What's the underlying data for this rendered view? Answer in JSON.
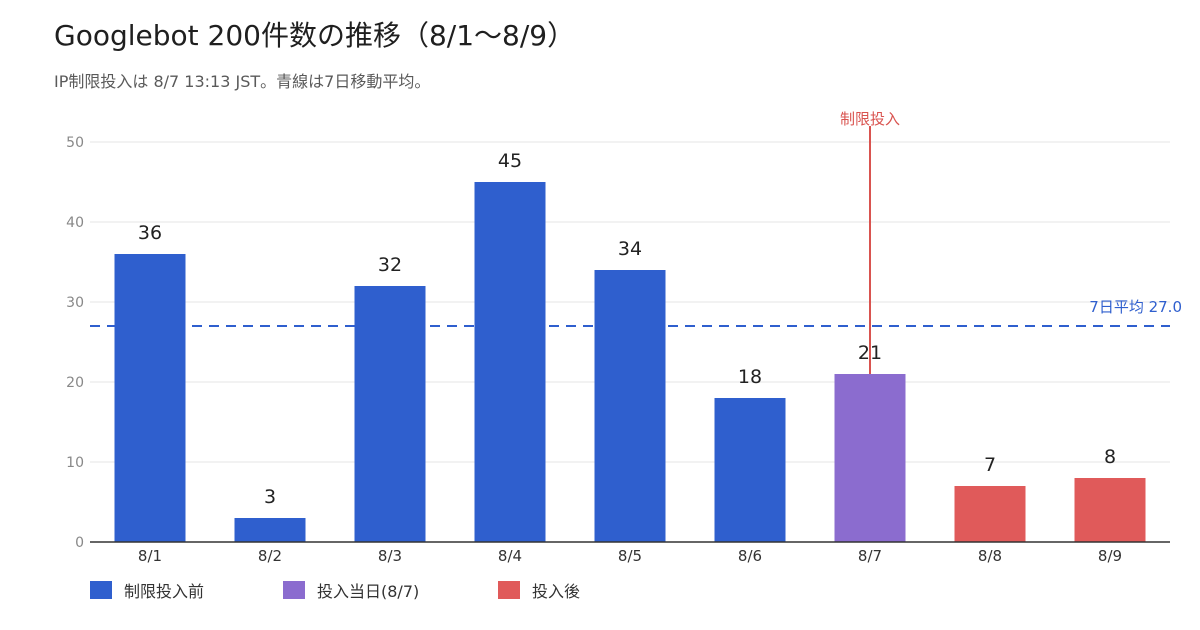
{
  "title": "Googlebot 200件数の推移（8/1〜8/9）",
  "subtitle": "IP制限投入は 8/7 13:13 JST。青線は7日移動平均。",
  "colors": {
    "before": "#2f5fce",
    "day_of": "#8b6ccf",
    "after": "#e05a5a",
    "marker": "#d9534f",
    "average": "#2f5fce",
    "grid": "#e6e6e6",
    "axis": "#333333",
    "tick": "#888888"
  },
  "chart_data": {
    "type": "bar",
    "categories": [
      "8/1",
      "8/2",
      "8/3",
      "8/4",
      "8/5",
      "8/6",
      "8/7",
      "8/8",
      "8/9"
    ],
    "values": [
      36,
      3,
      32,
      45,
      34,
      18,
      21,
      7,
      8
    ],
    "groups": [
      "before",
      "before",
      "before",
      "before",
      "before",
      "before",
      "day_of",
      "after",
      "after"
    ],
    "ylim": [
      0,
      50
    ],
    "yticks": [
      0,
      10,
      20,
      30,
      40,
      50
    ],
    "grid": true,
    "reference_line": {
      "value": 27.0,
      "label": "7日平均 27.0",
      "style": "dashed"
    },
    "event_marker": {
      "category": "8/7",
      "label": "制限投入"
    }
  },
  "legend": [
    {
      "key": "before",
      "label": "制限投入前"
    },
    {
      "key": "day_of",
      "label": "投入当日(8/7)"
    },
    {
      "key": "after",
      "label": "投入後"
    }
  ]
}
